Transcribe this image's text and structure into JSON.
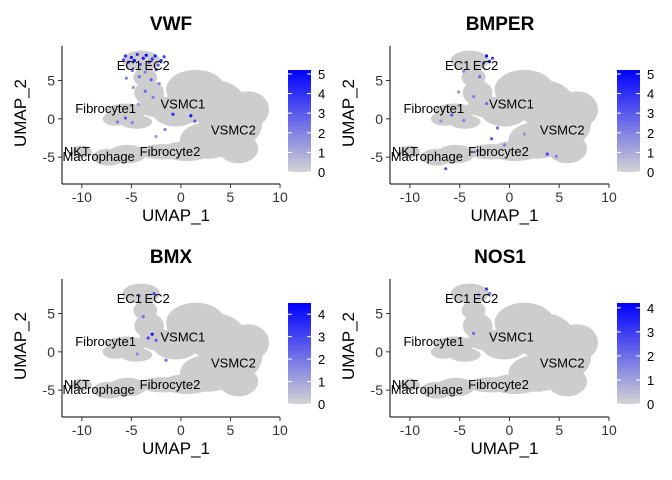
{
  "chart_data": [
    {
      "type": "scatter",
      "title": "VWF",
      "xlabel": "UMAP_1",
      "ylabel": "UMAP_2",
      "xlim": [
        -12,
        10
      ],
      "ylim": [
        -8.5,
        9.5
      ],
      "xticks": [
        "-10",
        "-5",
        "0",
        "5",
        "10"
      ],
      "yticks": [
        "-5",
        "0",
        "5"
      ],
      "legend": {
        "placement": "right",
        "min": 0,
        "max": 5.2,
        "ticks": [
          "0",
          "1",
          "2",
          "3",
          "4",
          "5"
        ]
      },
      "colors": {
        "low": "#d3d3d3",
        "high": "#0000ff"
      },
      "cluster_labels": [
        {
          "text": "EC1",
          "x": -5.2,
          "y": 6.9
        },
        {
          "text": "EC2",
          "x": -2.4,
          "y": 6.9
        },
        {
          "text": "Fibrocyte1",
          "x": -7.6,
          "y": 1.3
        },
        {
          "text": "VSMC1",
          "x": 0.2,
          "y": 1.9
        },
        {
          "text": "VSMC2",
          "x": 5.3,
          "y": -1.5
        },
        {
          "text": "NKT",
          "x": -10.5,
          "y": -4.3
        },
        {
          "text": "Macrophage",
          "x": -8.3,
          "y": -5.0
        },
        {
          "text": "Fibrocyte2",
          "x": -1.1,
          "y": -4.3
        }
      ],
      "expressing_cells": [
        {
          "x": -5.8,
          "y": 7.7,
          "v": 3.0
        },
        {
          "x": -5.6,
          "y": 8.2,
          "v": 4.0
        },
        {
          "x": -5.3,
          "y": 7.4,
          "v": 3.5
        },
        {
          "x": -5.0,
          "y": 8.0,
          "v": 4.5
        },
        {
          "x": -4.7,
          "y": 7.6,
          "v": 5.0
        },
        {
          "x": -4.4,
          "y": 8.4,
          "v": 4.0
        },
        {
          "x": -4.1,
          "y": 7.1,
          "v": 3.0
        },
        {
          "x": -3.8,
          "y": 7.9,
          "v": 4.5
        },
        {
          "x": -3.5,
          "y": 8.3,
          "v": 5.0
        },
        {
          "x": -3.2,
          "y": 7.4,
          "v": 3.5
        },
        {
          "x": -2.9,
          "y": 7.8,
          "v": 4.0
        },
        {
          "x": -2.6,
          "y": 8.2,
          "v": 4.5
        },
        {
          "x": -2.3,
          "y": 7.0,
          "v": 3.0
        },
        {
          "x": -2.0,
          "y": 7.6,
          "v": 4.0
        },
        {
          "x": -1.7,
          "y": 8.1,
          "v": 3.5
        },
        {
          "x": -4.9,
          "y": 6.3,
          "v": 2.5
        },
        {
          "x": -3.6,
          "y": 6.1,
          "v": 2.0
        },
        {
          "x": -2.5,
          "y": 6.4,
          "v": 3.0
        },
        {
          "x": -5.5,
          "y": 5.3,
          "v": 2.0
        },
        {
          "x": -4.2,
          "y": 5.5,
          "v": 2.5
        },
        {
          "x": -3.0,
          "y": 5.1,
          "v": 3.0
        },
        {
          "x": -2.2,
          "y": 4.6,
          "v": 2.0
        },
        {
          "x": -4.8,
          "y": 4.1,
          "v": 1.5
        },
        {
          "x": -3.6,
          "y": 3.6,
          "v": 2.5
        },
        {
          "x": -2.8,
          "y": 2.8,
          "v": 2.0
        },
        {
          "x": -4.3,
          "y": 1.9,
          "v": 1.5
        },
        {
          "x": -5.6,
          "y": 0.1,
          "v": 3.0
        },
        {
          "x": -4.9,
          "y": -0.5,
          "v": 2.0
        },
        {
          "x": -6.4,
          "y": -0.4,
          "v": 2.0
        },
        {
          "x": -0.8,
          "y": 0.6,
          "v": 4.0
        },
        {
          "x": 1.0,
          "y": 0.4,
          "v": 4.5
        },
        {
          "x": 1.4,
          "y": -0.3,
          "v": 3.0
        },
        {
          "x": -1.6,
          "y": -1.4,
          "v": 2.0
        },
        {
          "x": -2.5,
          "y": -2.3,
          "v": 1.5
        }
      ]
    },
    {
      "type": "scatter",
      "title": "BMPER",
      "xlabel": "UMAP_1",
      "ylabel": "UMAP_2",
      "xlim": [
        -12,
        10
      ],
      "ylim": [
        -8.5,
        9.5
      ],
      "xticks": [
        "-10",
        "-5",
        "0",
        "5",
        "10"
      ],
      "yticks": [
        "-5",
        "0",
        "5"
      ],
      "legend": {
        "placement": "right",
        "min": 0,
        "max": 5.2,
        "ticks": [
          "0",
          "1",
          "2",
          "3",
          "4",
          "5"
        ]
      },
      "colors": {
        "low": "#d3d3d3",
        "high": "#0000ff"
      },
      "cluster_labels": [
        {
          "text": "EC1",
          "x": -5.2,
          "y": 6.9
        },
        {
          "text": "EC2",
          "x": -2.4,
          "y": 6.9
        },
        {
          "text": "Fibrocyte1",
          "x": -7.6,
          "y": 1.3
        },
        {
          "text": "VSMC1",
          "x": 0.2,
          "y": 1.9
        },
        {
          "text": "VSMC2",
          "x": 5.3,
          "y": -1.5
        },
        {
          "text": "NKT",
          "x": -10.5,
          "y": -4.3
        },
        {
          "text": "Macrophage",
          "x": -8.3,
          "y": -5.0
        },
        {
          "text": "Fibrocyte2",
          "x": -1.1,
          "y": -4.3
        }
      ],
      "expressing_cells": [
        {
          "x": -2.3,
          "y": 8.2,
          "v": 5.0
        },
        {
          "x": -2.0,
          "y": 7.5,
          "v": 4.0
        },
        {
          "x": -1.7,
          "y": 7.9,
          "v": 3.5
        },
        {
          "x": -2.6,
          "y": 7.3,
          "v": 3.0
        },
        {
          "x": -4.6,
          "y": 6.2,
          "v": 2.0
        },
        {
          "x": -3.0,
          "y": 5.5,
          "v": 2.5
        },
        {
          "x": -5.1,
          "y": 3.5,
          "v": 1.5
        },
        {
          "x": -3.6,
          "y": 2.9,
          "v": 2.0
        },
        {
          "x": -2.3,
          "y": 2.0,
          "v": 2.5
        },
        {
          "x": -5.8,
          "y": 0.5,
          "v": 3.0
        },
        {
          "x": -4.6,
          "y": -0.2,
          "v": 2.0
        },
        {
          "x": -6.9,
          "y": -0.3,
          "v": 1.5
        },
        {
          "x": -1.2,
          "y": -1.2,
          "v": 2.5
        },
        {
          "x": -1.8,
          "y": -2.6,
          "v": 3.0
        },
        {
          "x": -0.5,
          "y": -3.4,
          "v": 2.0
        },
        {
          "x": 3.8,
          "y": -4.6,
          "v": 3.5
        },
        {
          "x": 4.7,
          "y": -4.9,
          "v": 2.0
        },
        {
          "x": 1.5,
          "y": -2.0,
          "v": 1.5
        },
        {
          "x": -3.2,
          "y": -4.2,
          "v": 2.0
        },
        {
          "x": -6.4,
          "y": -6.5,
          "v": 3.0
        }
      ]
    },
    {
      "type": "scatter",
      "title": "BMX",
      "xlabel": "UMAP_1",
      "ylabel": "UMAP_2",
      "xlim": [
        -12,
        10
      ],
      "ylim": [
        -8.5,
        9.5
      ],
      "xticks": [
        "-10",
        "-5",
        "0",
        "5",
        "10"
      ],
      "yticks": [
        "-5",
        "0",
        "5"
      ],
      "legend": {
        "placement": "right",
        "min": 0,
        "max": 4.5,
        "ticks": [
          "0",
          "1",
          "2",
          "3",
          "4"
        ]
      },
      "colors": {
        "low": "#d3d3d3",
        "high": "#0000ff"
      },
      "cluster_labels": [
        {
          "text": "EC1",
          "x": -5.2,
          "y": 6.9
        },
        {
          "text": "EC2",
          "x": -2.4,
          "y": 6.9
        },
        {
          "text": "Fibrocyte1",
          "x": -7.6,
          "y": 1.3
        },
        {
          "text": "VSMC1",
          "x": 0.2,
          "y": 1.9
        },
        {
          "text": "VSMC2",
          "x": 5.3,
          "y": -1.5
        },
        {
          "text": "NKT",
          "x": -10.5,
          "y": -4.3
        },
        {
          "text": "Macrophage",
          "x": -8.3,
          "y": -5.0
        },
        {
          "text": "Fibrocyte2",
          "x": -1.1,
          "y": -4.3
        }
      ],
      "expressing_cells": [
        {
          "x": -2.7,
          "y": 7.6,
          "v": 3.0
        },
        {
          "x": -4.2,
          "y": 7.3,
          "v": 2.0
        },
        {
          "x": -2.9,
          "y": 2.3,
          "v": 4.0
        },
        {
          "x": -3.3,
          "y": 1.8,
          "v": 3.0
        },
        {
          "x": -2.5,
          "y": 1.5,
          "v": 2.5
        },
        {
          "x": -3.8,
          "y": 4.6,
          "v": 2.0
        },
        {
          "x": -4.4,
          "y": -0.3,
          "v": 1.5
        },
        {
          "x": -1.5,
          "y": -1.1,
          "v": 2.0
        }
      ]
    },
    {
      "type": "scatter",
      "title": "NOS1",
      "xlabel": "UMAP_1",
      "ylabel": "UMAP_2",
      "xlim": [
        -12,
        10
      ],
      "ylim": [
        -8.5,
        9.5
      ],
      "xticks": [
        "-10",
        "-5",
        "0",
        "5",
        "10"
      ],
      "yticks": [
        "-5",
        "0",
        "5"
      ],
      "legend": {
        "placement": "right",
        "min": 0,
        "max": 4.2,
        "ticks": [
          "0",
          "1",
          "2",
          "3",
          "4"
        ]
      },
      "colors": {
        "low": "#d3d3d3",
        "high": "#0000ff"
      },
      "cluster_labels": [
        {
          "text": "EC1",
          "x": -5.2,
          "y": 6.9
        },
        {
          "text": "EC2",
          "x": -2.4,
          "y": 6.9
        },
        {
          "text": "Fibrocyte1",
          "x": -7.6,
          "y": 1.3
        },
        {
          "text": "VSMC1",
          "x": 0.2,
          "y": 1.9
        },
        {
          "text": "VSMC2",
          "x": 5.3,
          "y": -1.5
        },
        {
          "text": "NKT",
          "x": -10.5,
          "y": -4.3
        },
        {
          "text": "Macrophage",
          "x": -8.3,
          "y": -5.0
        },
        {
          "text": "Fibrocyte2",
          "x": -1.1,
          "y": -4.3
        }
      ],
      "expressing_cells": [
        {
          "x": -2.3,
          "y": 8.2,
          "v": 3.0
        },
        {
          "x": -2.0,
          "y": 7.6,
          "v": 2.0
        },
        {
          "x": -3.1,
          "y": 7.4,
          "v": 1.5
        },
        {
          "x": -3.6,
          "y": 2.4,
          "v": 2.0
        }
      ]
    }
  ]
}
